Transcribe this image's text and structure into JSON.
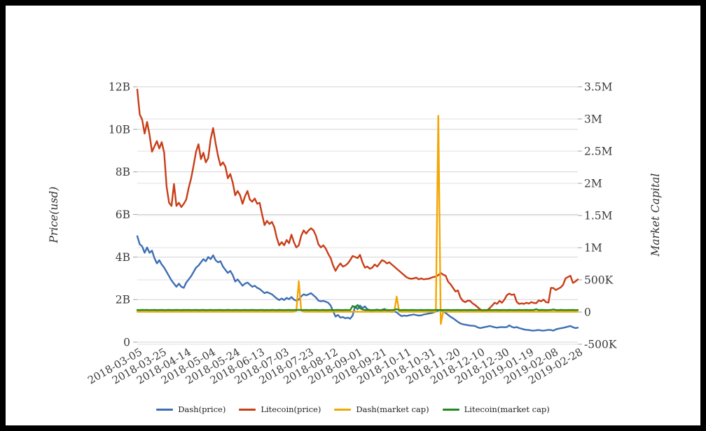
{
  "colors": {
    "background": "#ffffff",
    "frame": "#000000",
    "grid_left": "#d3d3d3",
    "grid_right": "#dfdfdf",
    "tick_text": "#3a3a3a",
    "axis_title_text": "#2f2f2f",
    "tick_mark": "#a0a0a0"
  },
  "chart_data": {
    "type": "line",
    "title": "",
    "grid": true,
    "legend_position": "bottom-center",
    "x_axis": {
      "start_date": "2018-03-05",
      "end_date": "2019-02-28",
      "sample_step_days": 2,
      "tick_day_offsets": [
        0,
        20,
        40,
        60,
        80,
        100,
        120,
        140,
        160,
        180,
        200,
        220,
        240,
        260,
        280,
        300,
        320,
        340,
        360
      ],
      "tick_labels": [
        "2018-03-05",
        "2018-03-25",
        "2018-04-14",
        "2018-05-04",
        "2018-05-24",
        "2018-06-13",
        "2018-07-03",
        "2018-07-23",
        "2018-08-12",
        "2018-09-01",
        "2018-09-21",
        "2018-10-11",
        "2018-10-31",
        "2018-11-20",
        "2018-12-10",
        "2018-12-30",
        "2019-01-19",
        "2019-02-08",
        "2019-02-28"
      ]
    },
    "left_axis": {
      "title": "Price(usd)",
      "unit": "USD billions",
      "range": [
        0,
        12
      ],
      "ticks": [
        {
          "label": "0",
          "value": 0
        },
        {
          "label": "2B",
          "value": 2
        },
        {
          "label": "4B",
          "value": 4
        },
        {
          "label": "6B",
          "value": 6
        },
        {
          "label": "8B",
          "value": 8
        },
        {
          "label": "10B",
          "value": 10
        },
        {
          "label": "12B",
          "value": 12
        }
      ]
    },
    "right_axis": {
      "title": "Market Capital",
      "unit": "thousands",
      "range": [
        -500,
        3500
      ],
      "ticks": [
        {
          "label": "-500K",
          "value": -500
        },
        {
          "label": "0",
          "value": 0
        },
        {
          "label": "500K",
          "value": 500
        },
        {
          "label": "1M",
          "value": 1000
        },
        {
          "label": "1.5M",
          "value": 1500
        },
        {
          "label": "2M",
          "value": 2000
        },
        {
          "label": "2.5M",
          "value": 2500
        },
        {
          "label": "3M",
          "value": 3000
        },
        {
          "label": "3.5M",
          "value": 3500
        }
      ]
    },
    "series": [
      {
        "name": "Dash(price)",
        "axis": "left",
        "color": "#3d6fb4",
        "values": [
          4.98,
          4.6,
          4.5,
          4.2,
          4.45,
          4.2,
          4.3,
          3.95,
          3.7,
          3.85,
          3.65,
          3.5,
          3.3,
          3.1,
          2.9,
          2.75,
          2.6,
          2.75,
          2.6,
          2.55,
          2.8,
          2.95,
          3.1,
          3.3,
          3.5,
          3.6,
          3.75,
          3.9,
          3.8,
          4.0,
          3.9,
          4.08,
          3.85,
          3.75,
          3.8,
          3.55,
          3.4,
          3.25,
          3.35,
          3.15,
          2.85,
          2.95,
          2.8,
          2.65,
          2.75,
          2.8,
          2.7,
          2.6,
          2.65,
          2.55,
          2.5,
          2.4,
          2.3,
          2.35,
          2.3,
          2.25,
          2.15,
          2.05,
          1.98,
          2.05,
          1.98,
          2.08,
          2.02,
          2.12,
          2.0,
          1.95,
          2.0,
          2.15,
          2.25,
          2.2,
          2.25,
          2.3,
          2.2,
          2.1,
          1.95,
          1.92,
          1.94,
          1.9,
          1.85,
          1.72,
          1.45,
          1.2,
          1.28,
          1.15,
          1.18,
          1.12,
          1.15,
          1.1,
          1.25,
          1.68,
          1.55,
          1.72,
          1.6,
          1.68,
          1.55,
          1.5,
          1.42,
          1.5,
          1.53,
          1.48,
          1.52,
          1.56,
          1.5,
          1.45,
          1.42,
          1.44,
          1.4,
          1.3,
          1.22,
          1.25,
          1.23,
          1.26,
          1.28,
          1.3,
          1.27,
          1.25,
          1.26,
          1.3,
          1.32,
          1.34,
          1.36,
          1.39,
          1.44,
          1.48,
          1.52,
          1.45,
          1.37,
          1.28,
          1.19,
          1.12,
          1.04,
          0.95,
          0.88,
          0.84,
          0.82,
          0.8,
          0.78,
          0.77,
          0.76,
          0.7,
          0.66,
          0.68,
          0.71,
          0.73,
          0.76,
          0.73,
          0.7,
          0.68,
          0.7,
          0.71,
          0.7,
          0.71,
          0.79,
          0.72,
          0.68,
          0.71,
          0.66,
          0.63,
          0.6,
          0.58,
          0.57,
          0.55,
          0.54,
          0.56,
          0.57,
          0.55,
          0.54,
          0.56,
          0.58,
          0.57,
          0.54,
          0.6,
          0.63,
          0.65,
          0.67,
          0.7,
          0.73,
          0.76,
          0.7,
          0.66,
          0.68
        ]
      },
      {
        "name": "Litecoin(price)",
        "axis": "left",
        "color": "#c93d17",
        "values": [
          11.87,
          10.7,
          10.45,
          9.8,
          10.35,
          9.75,
          8.95,
          9.2,
          9.45,
          9.1,
          9.4,
          8.9,
          7.3,
          6.55,
          6.4,
          7.43,
          6.4,
          6.55,
          6.35,
          6.5,
          6.7,
          7.25,
          7.7,
          8.3,
          8.95,
          9.3,
          8.6,
          8.9,
          8.45,
          8.65,
          9.55,
          10.06,
          9.35,
          8.75,
          8.3,
          8.45,
          8.25,
          7.7,
          7.9,
          7.5,
          6.9,
          7.1,
          6.9,
          6.5,
          6.85,
          7.1,
          6.7,
          6.6,
          6.75,
          6.5,
          6.55,
          6.0,
          5.5,
          5.7,
          5.55,
          5.65,
          5.4,
          4.9,
          4.55,
          4.7,
          4.55,
          4.8,
          4.65,
          5.05,
          4.7,
          4.45,
          4.55,
          5.0,
          5.25,
          5.1,
          5.25,
          5.35,
          5.25,
          5.0,
          4.6,
          4.45,
          4.55,
          4.4,
          4.15,
          3.95,
          3.6,
          3.35,
          3.55,
          3.7,
          3.55,
          3.6,
          3.7,
          3.85,
          4.05,
          4.0,
          3.95,
          4.1,
          3.75,
          3.5,
          3.55,
          3.45,
          3.5,
          3.65,
          3.55,
          3.7,
          3.85,
          3.8,
          3.7,
          3.75,
          3.65,
          3.55,
          3.45,
          3.35,
          3.25,
          3.15,
          3.05,
          3.0,
          2.98,
          3.0,
          3.03,
          2.95,
          3.0,
          2.95,
          2.97,
          2.98,
          3.02,
          3.06,
          3.08,
          3.15,
          3.25,
          3.17,
          3.12,
          2.84,
          2.72,
          2.55,
          2.38,
          2.43,
          2.1,
          1.94,
          1.88,
          1.95,
          1.94,
          1.82,
          1.75,
          1.65,
          1.55,
          1.48,
          1.44,
          1.5,
          1.6,
          1.72,
          1.85,
          1.8,
          1.94,
          1.85,
          2.0,
          2.21,
          2.28,
          2.22,
          2.25,
          1.9,
          1.8,
          1.82,
          1.8,
          1.85,
          1.81,
          1.88,
          1.84,
          1.83,
          1.96,
          1.92,
          2.0,
          1.88,
          1.86,
          2.55,
          2.54,
          2.45,
          2.51,
          2.57,
          2.7,
          3.0,
          3.06,
          3.12,
          2.78,
          2.85,
          2.95
        ]
      },
      {
        "name": "Dash(market cap)",
        "axis": "right",
        "color": "#f2a705",
        "values": [
          5,
          6,
          4,
          5,
          7,
          5,
          4,
          6,
          5,
          6,
          4,
          5,
          6,
          5,
          4,
          7,
          5,
          4,
          6,
          5,
          5,
          6,
          4,
          5,
          6,
          5,
          7,
          4,
          5,
          6,
          4,
          5,
          7,
          5,
          4,
          6,
          5,
          6,
          4,
          5,
          6,
          5,
          4,
          7,
          5,
          4,
          6,
          5,
          5,
          6,
          4,
          5,
          6,
          4,
          7,
          5,
          4,
          6,
          5,
          4,
          5,
          6,
          4,
          5,
          7,
          20,
          480,
          25,
          6,
          5,
          4,
          6,
          5,
          5,
          6,
          4,
          5,
          6,
          5,
          4,
          5,
          6,
          4,
          6,
          5,
          5,
          4,
          6,
          5,
          6,
          5,
          4,
          6,
          5,
          5,
          6,
          4,
          5,
          6,
          5,
          4,
          5,
          6,
          5,
          4,
          12,
          240,
          10,
          5,
          6,
          5,
          4,
          6,
          5,
          5,
          4,
          6,
          5,
          4,
          6,
          5,
          5,
          4,
          3050,
          -185,
          8,
          5,
          6,
          4,
          5,
          6,
          4,
          5,
          6,
          5,
          4,
          6,
          5,
          5,
          4,
          5,
          6,
          4,
          5,
          6,
          5,
          4,
          6,
          5,
          5,
          4,
          6,
          5,
          4,
          6,
          5,
          5,
          4,
          6,
          5,
          4,
          6,
          5,
          5,
          6,
          4,
          5,
          6,
          4,
          5,
          6,
          4,
          5,
          6,
          5,
          4,
          6,
          5,
          5,
          4,
          5
        ]
      },
      {
        "name": "Litecoin(market cap)",
        "axis": "right",
        "color": "#1f8a1f",
        "values": [
          32,
          30,
          33,
          31,
          34,
          30,
          32,
          33,
          30,
          31,
          33,
          30,
          32,
          34,
          30,
          31,
          33,
          32,
          30,
          33,
          31,
          34,
          30,
          32,
          33,
          30,
          31,
          33,
          30,
          32,
          34,
          30,
          32,
          31,
          33,
          30,
          32,
          34,
          31,
          30,
          33,
          31,
          30,
          32,
          34,
          30,
          31,
          33,
          32,
          30,
          31,
          33,
          30,
          32,
          30,
          34,
          31,
          30,
          33,
          32,
          30,
          31,
          33,
          30,
          32,
          31,
          34,
          30,
          32,
          33,
          30,
          32,
          31,
          33,
          30,
          32,
          34,
          30,
          31,
          33,
          30,
          32,
          33,
          31,
          30,
          34,
          32,
          30,
          95,
          70,
          110,
          60,
          40,
          33,
          31,
          32,
          30,
          33,
          31,
          32,
          30,
          33,
          31,
          30,
          32,
          34,
          45,
          31,
          30,
          33,
          31,
          30,
          33,
          32,
          30,
          31,
          34,
          30,
          32,
          33,
          30,
          32,
          31,
          33,
          30,
          31,
          32,
          34,
          30,
          32,
          31,
          33,
          30,
          32,
          31,
          30,
          33,
          32,
          30,
          31,
          33,
          30,
          32,
          31,
          34,
          30,
          32,
          33,
          30,
          31,
          32,
          30,
          33,
          31,
          30,
          32,
          34,
          30,
          31,
          33,
          30,
          32,
          31,
          45,
          30,
          33,
          31,
          30,
          32,
          34,
          40,
          32,
          30,
          33,
          31,
          30,
          32,
          31,
          33,
          30,
          32
        ]
      }
    ]
  },
  "legend": {
    "items": [
      "Dash(price)",
      "Litecoin(price)",
      "Dash(market cap)",
      "Litecoin(market cap)"
    ]
  }
}
